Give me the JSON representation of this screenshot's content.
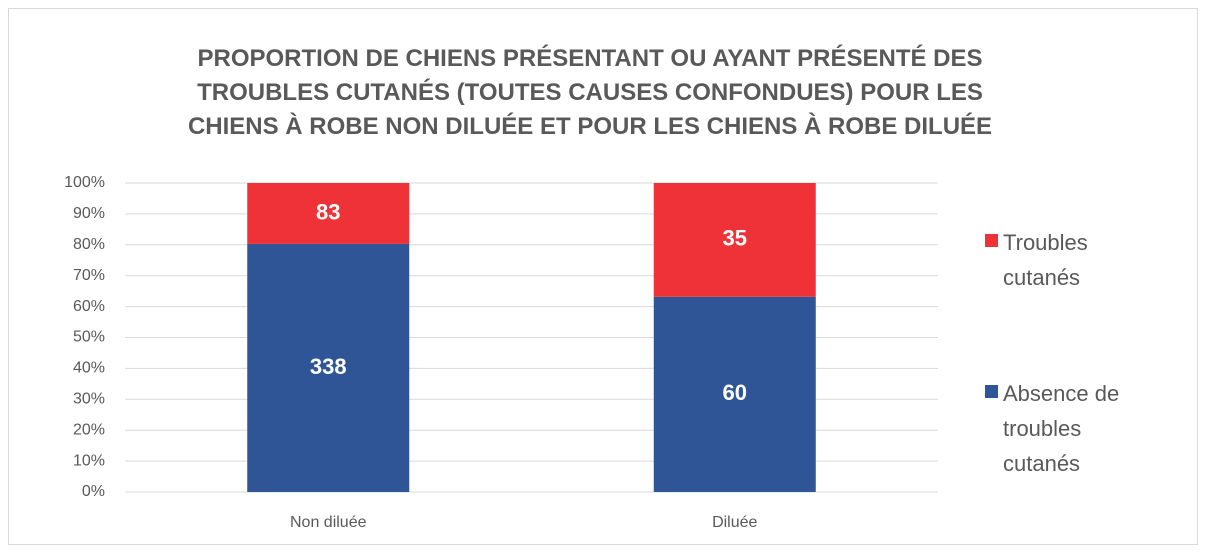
{
  "chart_data": {
    "type": "bar",
    "stacking": "percent",
    "title": "PROPORTION DE CHIENS PRÉSENTANT OU AYANT PRÉSENTÉ DES TROUBLES CUTANÉS (TOUTES CAUSES CONFONDUES) POUR LES CHIENS À ROBE NON DILUÉE ET POUR LES CHIENS À ROBE DILUÉE",
    "categories": [
      "Non diluée",
      "Diluée"
    ],
    "series": [
      {
        "name": "Absence de troubles cutanés",
        "color": "#2f5597",
        "values": [
          338,
          60
        ]
      },
      {
        "name": "Troubles cutanés",
        "color": "#ee3237",
        "values": [
          83,
          35
        ]
      }
    ],
    "ylim": [
      0,
      100
    ],
    "yticks": [
      {
        "value": 0,
        "label": "0%"
      },
      {
        "value": 10,
        "label": "10%"
      },
      {
        "value": 20,
        "label": "20%"
      },
      {
        "value": 30,
        "label": "30%"
      },
      {
        "value": 40,
        "label": "40%"
      },
      {
        "value": 50,
        "label": "50%"
      },
      {
        "value": 60,
        "label": "60%"
      },
      {
        "value": 70,
        "label": "70%"
      },
      {
        "value": 80,
        "label": "80%"
      },
      {
        "value": 90,
        "label": "90%"
      },
      {
        "value": 100,
        "label": "100%"
      }
    ],
    "grid": true,
    "legend": "right"
  }
}
